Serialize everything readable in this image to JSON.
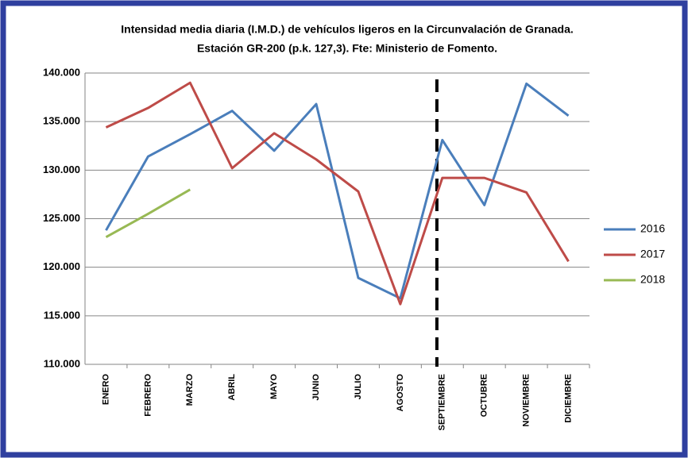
{
  "chart_data": {
    "type": "line",
    "title": "Intensidad media diaria (I.M.D.) de vehículos ligeros en la Circunvalación  de Granada.",
    "subtitle": "Estación GR-200 (p.k. 127,3). Fte: Ministerio de Fomento.",
    "categories": [
      "ENERO",
      "FEBRERO",
      "MARZO",
      "ABRIL",
      "MAYO",
      "JUNIO",
      "JULIO",
      "AGOSTO",
      "SEPTIEMBRE",
      "OCTUBRE",
      "NOVIEMBRE",
      "DICIEMBRE"
    ],
    "series": [
      {
        "name": "2016",
        "color": "#4a7ebb",
        "values": [
          123800,
          131400,
          133700,
          136100,
          132000,
          136800,
          118900,
          116800,
          133100,
          126400,
          138900,
          135600
        ]
      },
      {
        "name": "2017",
        "color": "#be4b48",
        "values": [
          134400,
          136400,
          139000,
          130200,
          133800,
          131100,
          127800,
          116200,
          129200,
          129200,
          127700,
          120600
        ]
      },
      {
        "name": "2018",
        "color": "#98b954",
        "values": [
          123100,
          125500,
          128000,
          null,
          null,
          null,
          null,
          null,
          null,
          null,
          null,
          null
        ]
      }
    ],
    "ylim": [
      110000,
      140000
    ],
    "yticks": [
      {
        "value": 110000,
        "label": "110.000"
      },
      {
        "value": 115000,
        "label": "115.000"
      },
      {
        "value": 120000,
        "label": "120.000"
      },
      {
        "value": 125000,
        "label": "125.000"
      },
      {
        "value": 130000,
        "label": "130.000"
      },
      {
        "value": 135000,
        "label": "135.000"
      },
      {
        "value": 140000,
        "label": "140.000"
      }
    ],
    "grid": true,
    "legend": "right"
  }
}
